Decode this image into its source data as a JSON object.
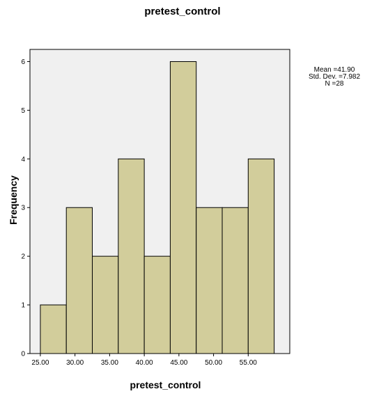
{
  "chart_data": {
    "type": "bar",
    "title": "pretest_control",
    "xlabel": "pretest_control",
    "ylabel": "Frequency",
    "bin_width": 3.75,
    "bins": [
      {
        "start": 25.0,
        "end": 28.75,
        "value": 1
      },
      {
        "start": 28.75,
        "end": 32.5,
        "value": 3
      },
      {
        "start": 32.5,
        "end": 36.25,
        "value": 2
      },
      {
        "start": 36.25,
        "end": 40.0,
        "value": 4
      },
      {
        "start": 40.0,
        "end": 43.75,
        "value": 2
      },
      {
        "start": 43.75,
        "end": 47.5,
        "value": 6
      },
      {
        "start": 47.5,
        "end": 51.25,
        "value": 3
      },
      {
        "start": 51.25,
        "end": 55.0,
        "value": 3
      },
      {
        "start": 55.0,
        "end": 58.75,
        "value": 4
      }
    ],
    "xticks": [
      "25.00",
      "30.00",
      "35.00",
      "40.00",
      "45.00",
      "50.00",
      "55.00"
    ],
    "yticks": [
      "0",
      "1",
      "2",
      "3",
      "4",
      "5",
      "6"
    ],
    "xlim": [
      23.5,
      61
    ],
    "ylim": [
      0,
      6.25
    ],
    "grid": false,
    "colors": {
      "bar_fill": "#d2cd9b",
      "plot_bg": "#f0f0f0"
    },
    "stats": {
      "mean": "Mean =41.90",
      "std_dev": "Std. Dev. =7.982",
      "n": "N =28"
    }
  }
}
